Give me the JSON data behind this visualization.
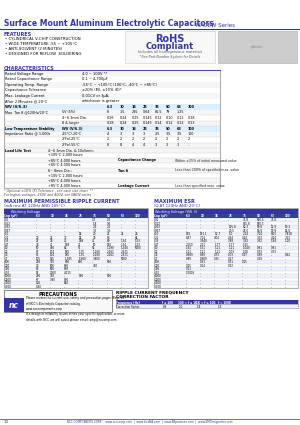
{
  "title_main": "Surface Mount Aluminum Electrolytic Capacitors",
  "title_series": "NACEW Series",
  "bg_color": "#ffffff",
  "blue": "#3333aa",
  "features": [
    "CYLINDRICAL V-CHIP CONSTRUCTION",
    "WIDE TEMPERATURE -55 ~ +105°C",
    "ANTI-SOLVENT (2 MINUTES)",
    "DESIGNED FOR REFLOW  SOLDERING"
  ],
  "char_rows_basic": [
    [
      "Rated Voltage Range",
      "4.0 ~ 100V **"
    ],
    [
      "Rated Capacitance Range",
      "0.1 ~ 4,700μF"
    ],
    [
      "Operating Temp. Range",
      "-55°C ~ +105°C (106°C, -40°C ~ +85°C)"
    ],
    [
      "Capacitance Tolerance",
      "±20% (M), ±10% (K)*"
    ],
    [
      "Max. Leakage Current",
      "0.01CV or 3μA,"
    ],
    [
      "After 2 Minutes @ 20°C",
      "whichever is greater"
    ]
  ],
  "wv_vals": [
    "6.3",
    "10",
    "16",
    "25",
    "35",
    "50",
    "63",
    "100"
  ],
  "tand_rows": [
    [
      "5V (5%)",
      "8",
      "1.5",
      "285",
      "0.64",
      "80.5",
      "79",
      "1.25"
    ],
    [
      "4~6 3mm Dia.",
      "0.26",
      "0.24",
      "0.25",
      "0.145",
      "0.12",
      "0.10",
      "0.12",
      "0.18"
    ],
    [
      "8 & larger",
      "0.28",
      "0.24",
      "0.25",
      "0.145",
      "0.14",
      "0.12",
      "0.12",
      "0.13"
    ]
  ],
  "lt_rows": [
    [
      "-25°C/-20°C",
      "4",
      "3",
      "3",
      "3",
      "2.5",
      "3.5",
      "3.5",
      "100"
    ],
    [
      "2*Fo/-25°C",
      "2",
      "2",
      "2",
      "2",
      "2",
      "2",
      "2",
      "2"
    ],
    [
      "2*Fo/-55°C",
      "8",
      "8",
      "4",
      "4",
      "3",
      "3",
      "3",
      "-"
    ]
  ],
  "llt_subs": [
    "4~6 3mm Dia. & 10x5mm:",
    "+105°C 2,000 hours",
    "+85°C 4,000 hours",
    "+85°C 4,000 hours",
    "6~ 8mm Dia.:",
    "+105°C 2,000 hours",
    "+85°C 4,000 hours",
    "+85°C 4,000 hours"
  ],
  "llt_right_labels": [
    "",
    "",
    "Capacitance Change",
    "",
    "Tan δ",
    "",
    "",
    "Leakage Current"
  ],
  "llt_right_vals": [
    "",
    "",
    "Within ±25% of initial measured value",
    "",
    "Less than 200% of specified max. value",
    "",
    "",
    "Less than specified max. value"
  ],
  "footnote1": "* Optional ±10% (K) Tolerance - see case size chart  **",
  "footnote2": "For higher voltages, 250V and 400V, see NACN series",
  "ripple_cols": [
    "Cap (μF)",
    "6.3",
    "10",
    "16",
    "25",
    "35",
    "50",
    "63",
    "100"
  ],
  "ripple_data": [
    [
      "0.1",
      "-",
      "-",
      "-",
      "-",
      "0.7",
      "0.7",
      "-",
      "-"
    ],
    [
      "0.22",
      "-",
      "-",
      "-",
      "-",
      "1.8",
      "0.6",
      "-",
      "-"
    ],
    [
      "0.33",
      "-",
      "-",
      "-",
      "-",
      "2.9",
      "2.5",
      "-",
      "-"
    ],
    [
      "0.47",
      "-",
      "-",
      "-",
      "-",
      "3.5",
      "3.5",
      "-",
      "-"
    ],
    [
      "1.0",
      "-",
      "-",
      "-",
      "14",
      "20",
      "21",
      "24",
      "26"
    ],
    [
      "2.2",
      "20",
      "25",
      "37",
      "14",
      "38",
      "86",
      "-",
      "64"
    ],
    [
      "3.3",
      "27",
      "38",
      "41",
      "168",
      "41",
      "80",
      "1.34",
      "1.53"
    ],
    [
      "4.7",
      "38",
      "41",
      "168",
      "41",
      "50",
      "150",
      "1.34",
      "1.53"
    ],
    [
      "10",
      "50",
      "480",
      "84",
      "91",
      "94",
      "1,190",
      "1,346",
      "5000"
    ],
    [
      "22",
      "67",
      "104",
      "185",
      "1,75",
      "1,160",
      "2,261",
      "2,671",
      "-"
    ],
    [
      "33",
      "85",
      "104",
      "185",
      "1,75",
      "1,160",
      "2,261",
      "2,671",
      "-"
    ],
    [
      "47",
      "105",
      "155",
      "1,385",
      "1,960",
      "3,800",
      "-",
      "5000",
      "-"
    ],
    [
      "100",
      "280",
      "335",
      "660",
      "880",
      "-",
      "680",
      "-",
      "-"
    ],
    [
      "220",
      "33",
      "500",
      "880",
      "-",
      "740",
      "-",
      "-",
      "-"
    ],
    [
      "330",
      "53",
      "500",
      "880",
      "-",
      "-",
      "-",
      "-",
      "-"
    ],
    [
      "470",
      "53",
      "2000",
      "4,115",
      "-",
      "-",
      "-",
      "-",
      "-"
    ],
    [
      "1000",
      "280",
      "350",
      "-",
      "680",
      "-",
      "680",
      "-",
      "-"
    ],
    [
      "2200",
      "67",
      "3.60",
      "880",
      "-",
      "-",
      "-",
      "-",
      "-"
    ],
    [
      "3300",
      "120",
      "-",
      "840",
      "-",
      "-",
      "-",
      "-",
      "-"
    ],
    [
      "4700",
      "6.60",
      "-",
      "-",
      "-",
      "-",
      "-",
      "-",
      "-"
    ]
  ],
  "esr_cols": [
    "Cap (μF)",
    "6.3",
    "10",
    "16",
    "25",
    "35",
    "50",
    "63",
    "100"
  ],
  "esr_data": [
    [
      "0.1",
      "-",
      "-",
      "-",
      "-",
      "75.8",
      "560.5",
      "75.8",
      "-"
    ],
    [
      "0.22",
      "-",
      "-",
      "-",
      "-",
      "855.8",
      "560.5",
      "-",
      "-"
    ],
    [
      "0.33",
      "-",
      "-",
      "-",
      "135.8",
      "62.3",
      "90.8",
      "12.9",
      "89.3"
    ],
    [
      "0.47",
      "-",
      "-",
      "-",
      "20.5",
      "23.0",
      "16.8",
      "19.9",
      "14.8"
    ],
    [
      "1.0",
      "181",
      "151.1",
      "12.7",
      "1.0",
      "2.04",
      "7.04",
      "8.03",
      "7.818"
    ],
    [
      "2.2",
      "8.47",
      "7.04",
      "4.04",
      "4.34",
      "4.24",
      "3.53",
      "4.24",
      "3.53"
    ],
    [
      "3.3",
      "-",
      "3.940",
      "-",
      "3.98",
      "3.32",
      "3.52",
      "1.94",
      "1.10"
    ],
    [
      "4.7",
      "2,050",
      "2.21",
      "1.77",
      "1.77",
      "1.55",
      "-",
      "-",
      "-"
    ],
    [
      "10",
      "1.61",
      "1.51",
      "1.21",
      "1.21",
      "1.040",
      "0.81",
      "0.81",
      "-"
    ],
    [
      "22",
      "1.21",
      "1.21",
      "1.21",
      "1.03",
      "1.00",
      "0.73",
      "0.73",
      "-"
    ],
    [
      "33",
      "0.989",
      "0.89",
      "0.73",
      "0.73",
      "0.37",
      "0.39",
      "-",
      "0.62"
    ],
    [
      "47",
      "0.89",
      "0.989",
      "0.35",
      "0.27",
      "-",
      "0.29",
      "-",
      "-"
    ],
    [
      "100",
      "-",
      "0.31",
      "-",
      "0.31",
      "0.15",
      "-",
      "-",
      "-"
    ],
    [
      "220",
      "0.15",
      "0.14",
      "-",
      "0.32",
      "-",
      "-",
      "-",
      "-"
    ],
    [
      "330",
      "0.11",
      "-",
      "-",
      "-",
      "-",
      "-",
      "-",
      "-"
    ],
    [
      "470",
      "0.0003",
      "-",
      "-",
      "-",
      "-",
      "-",
      "-",
      "-"
    ],
    [
      "1000",
      "-",
      "-",
      "-",
      "-",
      "-",
      "-",
      "-",
      "-"
    ],
    [
      "2200",
      "-",
      "-",
      "-",
      "-",
      "-",
      "-",
      "-",
      "-"
    ],
    [
      "3300",
      "-",
      "-",
      "-",
      "-",
      "-",
      "-",
      "-",
      "-"
    ],
    [
      "4700",
      "-",
      "-",
      "-",
      "-",
      "-",
      "-",
      "-",
      "-"
    ]
  ],
  "freq_headers": [
    "Frequency (Hz)",
    "f ≤ 100",
    "100 < f ≤ 1K",
    "1K < f ≤ 10K",
    "f > 100K"
  ],
  "freq_values": [
    "Correction Factor",
    "0.8",
    "1.0",
    "1.8",
    "1.9"
  ],
  "footer_text": "NCC COMPONENTS CORP.    www.ncccomp.com  |  www.IcedSA.com  |  www.NFpassives.com  |  www.SMTmagnetics.com",
  "page_num": "10"
}
